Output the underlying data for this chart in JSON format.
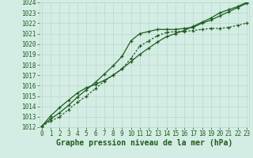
{
  "title": "Graphe pression niveau de la mer (hPa)",
  "hours": [
    0,
    1,
    2,
    3,
    4,
    5,
    6,
    7,
    8,
    9,
    10,
    11,
    12,
    13,
    14,
    15,
    16,
    17,
    18,
    19,
    20,
    21,
    22,
    23
  ],
  "ylim": [
    1012,
    1024
  ],
  "yticks": [
    1012,
    1013,
    1014,
    1015,
    1016,
    1017,
    1018,
    1019,
    1020,
    1021,
    1022,
    1023,
    1024
  ],
  "line1_solid_upper": [
    1012.1,
    1012.8,
    1013.4,
    1014.1,
    1014.9,
    1015.6,
    1016.3,
    1017.1,
    1017.9,
    1018.8,
    1020.3,
    1021.0,
    1021.2,
    1021.4,
    1021.4,
    1021.4,
    1021.5,
    1021.6,
    1022.0,
    1022.3,
    1022.7,
    1023.1,
    1023.5,
    1023.9
  ],
  "line2_solid_lower": [
    1012.1,
    1013.1,
    1013.9,
    1014.6,
    1015.3,
    1015.8,
    1016.1,
    1016.5,
    1017.0,
    1017.6,
    1018.3,
    1019.0,
    1019.6,
    1020.2,
    1020.7,
    1021.0,
    1021.3,
    1021.7,
    1022.1,
    1022.5,
    1023.0,
    1023.3,
    1023.6,
    1024.0
  ],
  "line3_dotted": [
    1012.1,
    1012.6,
    1013.0,
    1013.7,
    1014.4,
    1015.0,
    1015.7,
    1016.4,
    1017.0,
    1017.6,
    1018.6,
    1019.8,
    1020.3,
    1020.8,
    1021.1,
    1021.2,
    1021.2,
    1021.3,
    1021.4,
    1021.5,
    1021.5,
    1021.6,
    1021.8,
    1022.0
  ],
  "line_color": "#1e5c1e",
  "bg_color": "#d4ede4",
  "grid_color": "#b8d8cc",
  "label_color": "#1e5c1e",
  "title_fontsize": 7.0,
  "tick_fontsize": 5.5
}
